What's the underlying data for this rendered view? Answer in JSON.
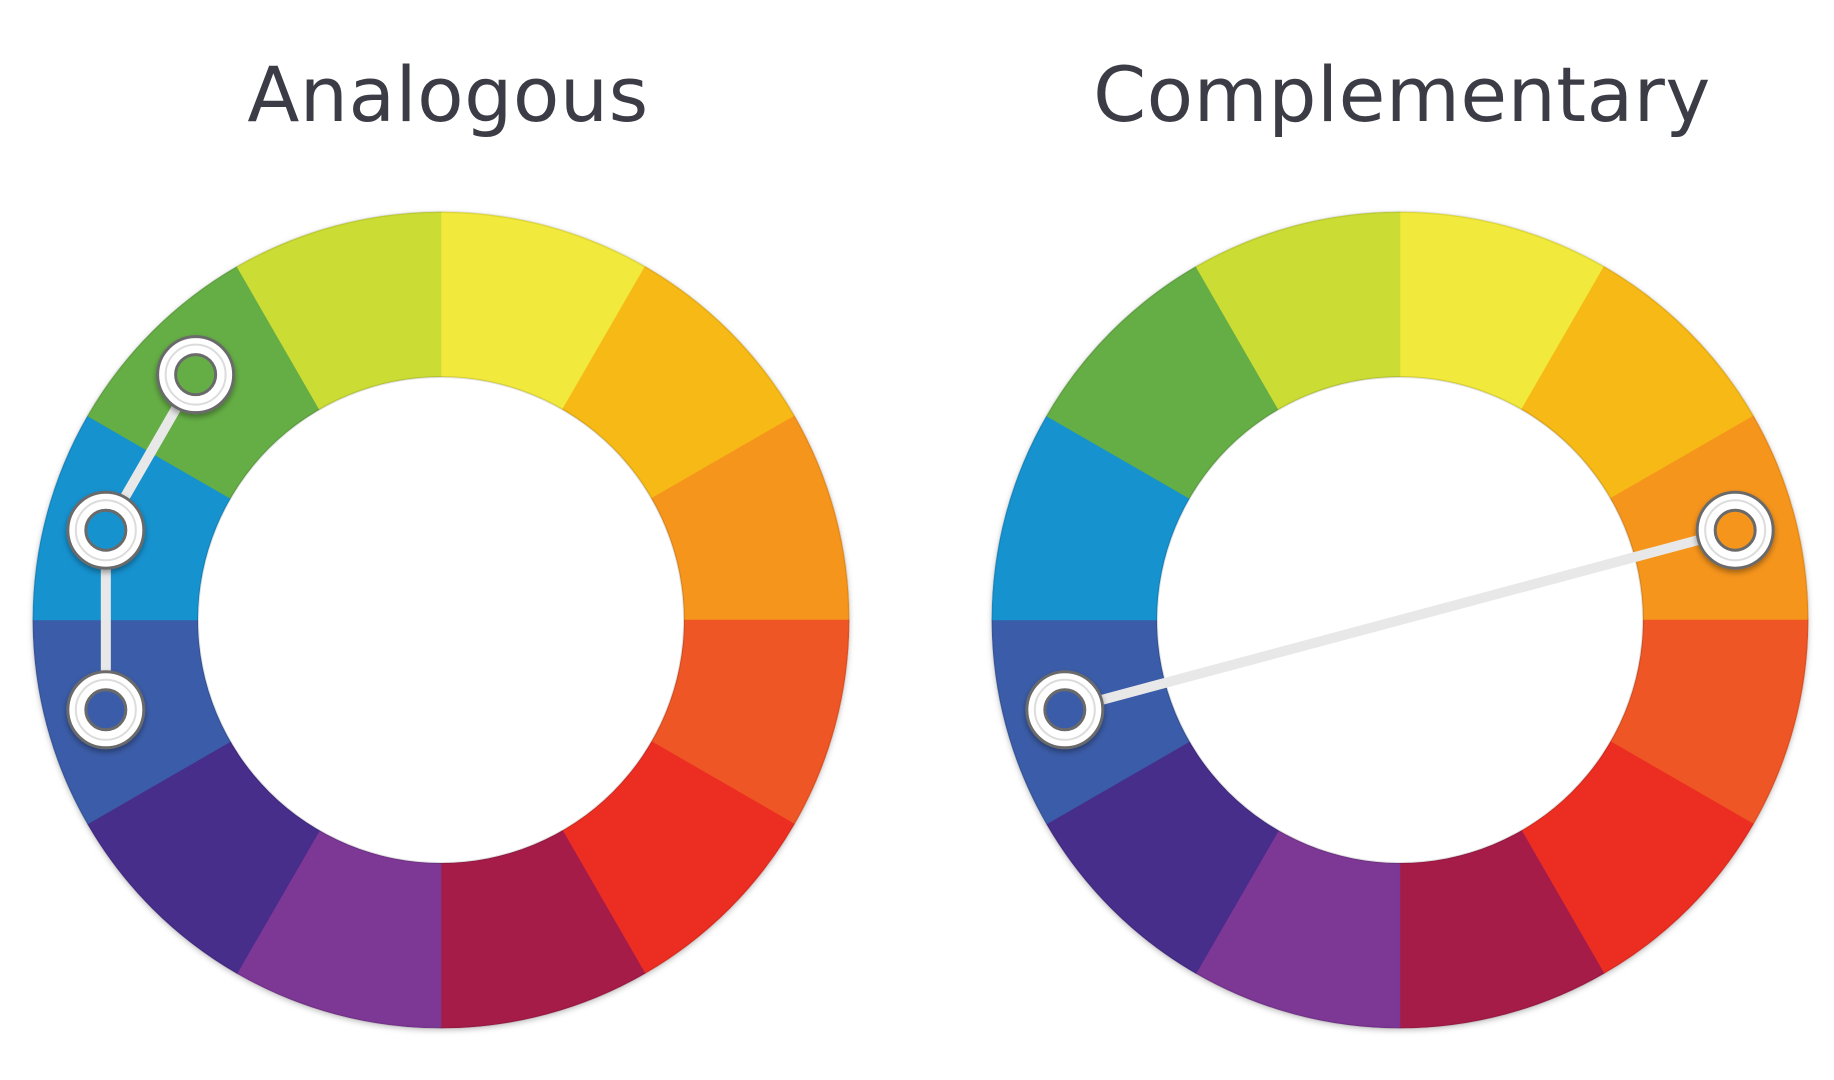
{
  "diagrams": [
    {
      "title": "Analogous",
      "selected_segments": [
        10,
        9,
        8
      ],
      "connections": [
        [
          10,
          9
        ],
        [
          9,
          8
        ]
      ]
    },
    {
      "title": "Complementary",
      "selected_segments": [
        2,
        8
      ],
      "connections": [
        [
          2,
          8
        ]
      ]
    }
  ],
  "segments": [
    {
      "name": "yellow",
      "color": "#f1e93a"
    },
    {
      "name": "yellow-orange",
      "color": "#f6b915"
    },
    {
      "name": "orange",
      "color": "#f6951f"
    },
    {
      "name": "red-orange",
      "color": "#ef5625"
    },
    {
      "name": "red",
      "color": "#ec2f24"
    },
    {
      "name": "red-violet",
      "color": "#a61b4a"
    },
    {
      "name": "violet",
      "color": "#7c3794"
    },
    {
      "name": "blue-violet",
      "color": "#472d8b"
    },
    {
      "name": "blue",
      "color": "#3b5ba8"
    },
    {
      "name": "blue-green",
      "color": "#1792cf"
    },
    {
      "name": "green",
      "color": "#65ae44"
    },
    {
      "name": "yellow-green",
      "color": "#cbdc35"
    }
  ],
  "colors": {
    "ring_edge": "#c8c8c8",
    "marker_fill": "#ffffff",
    "marker_outline": "#6b6b6b",
    "connector": "#e8e8e8",
    "title": "#3c3c46"
  }
}
